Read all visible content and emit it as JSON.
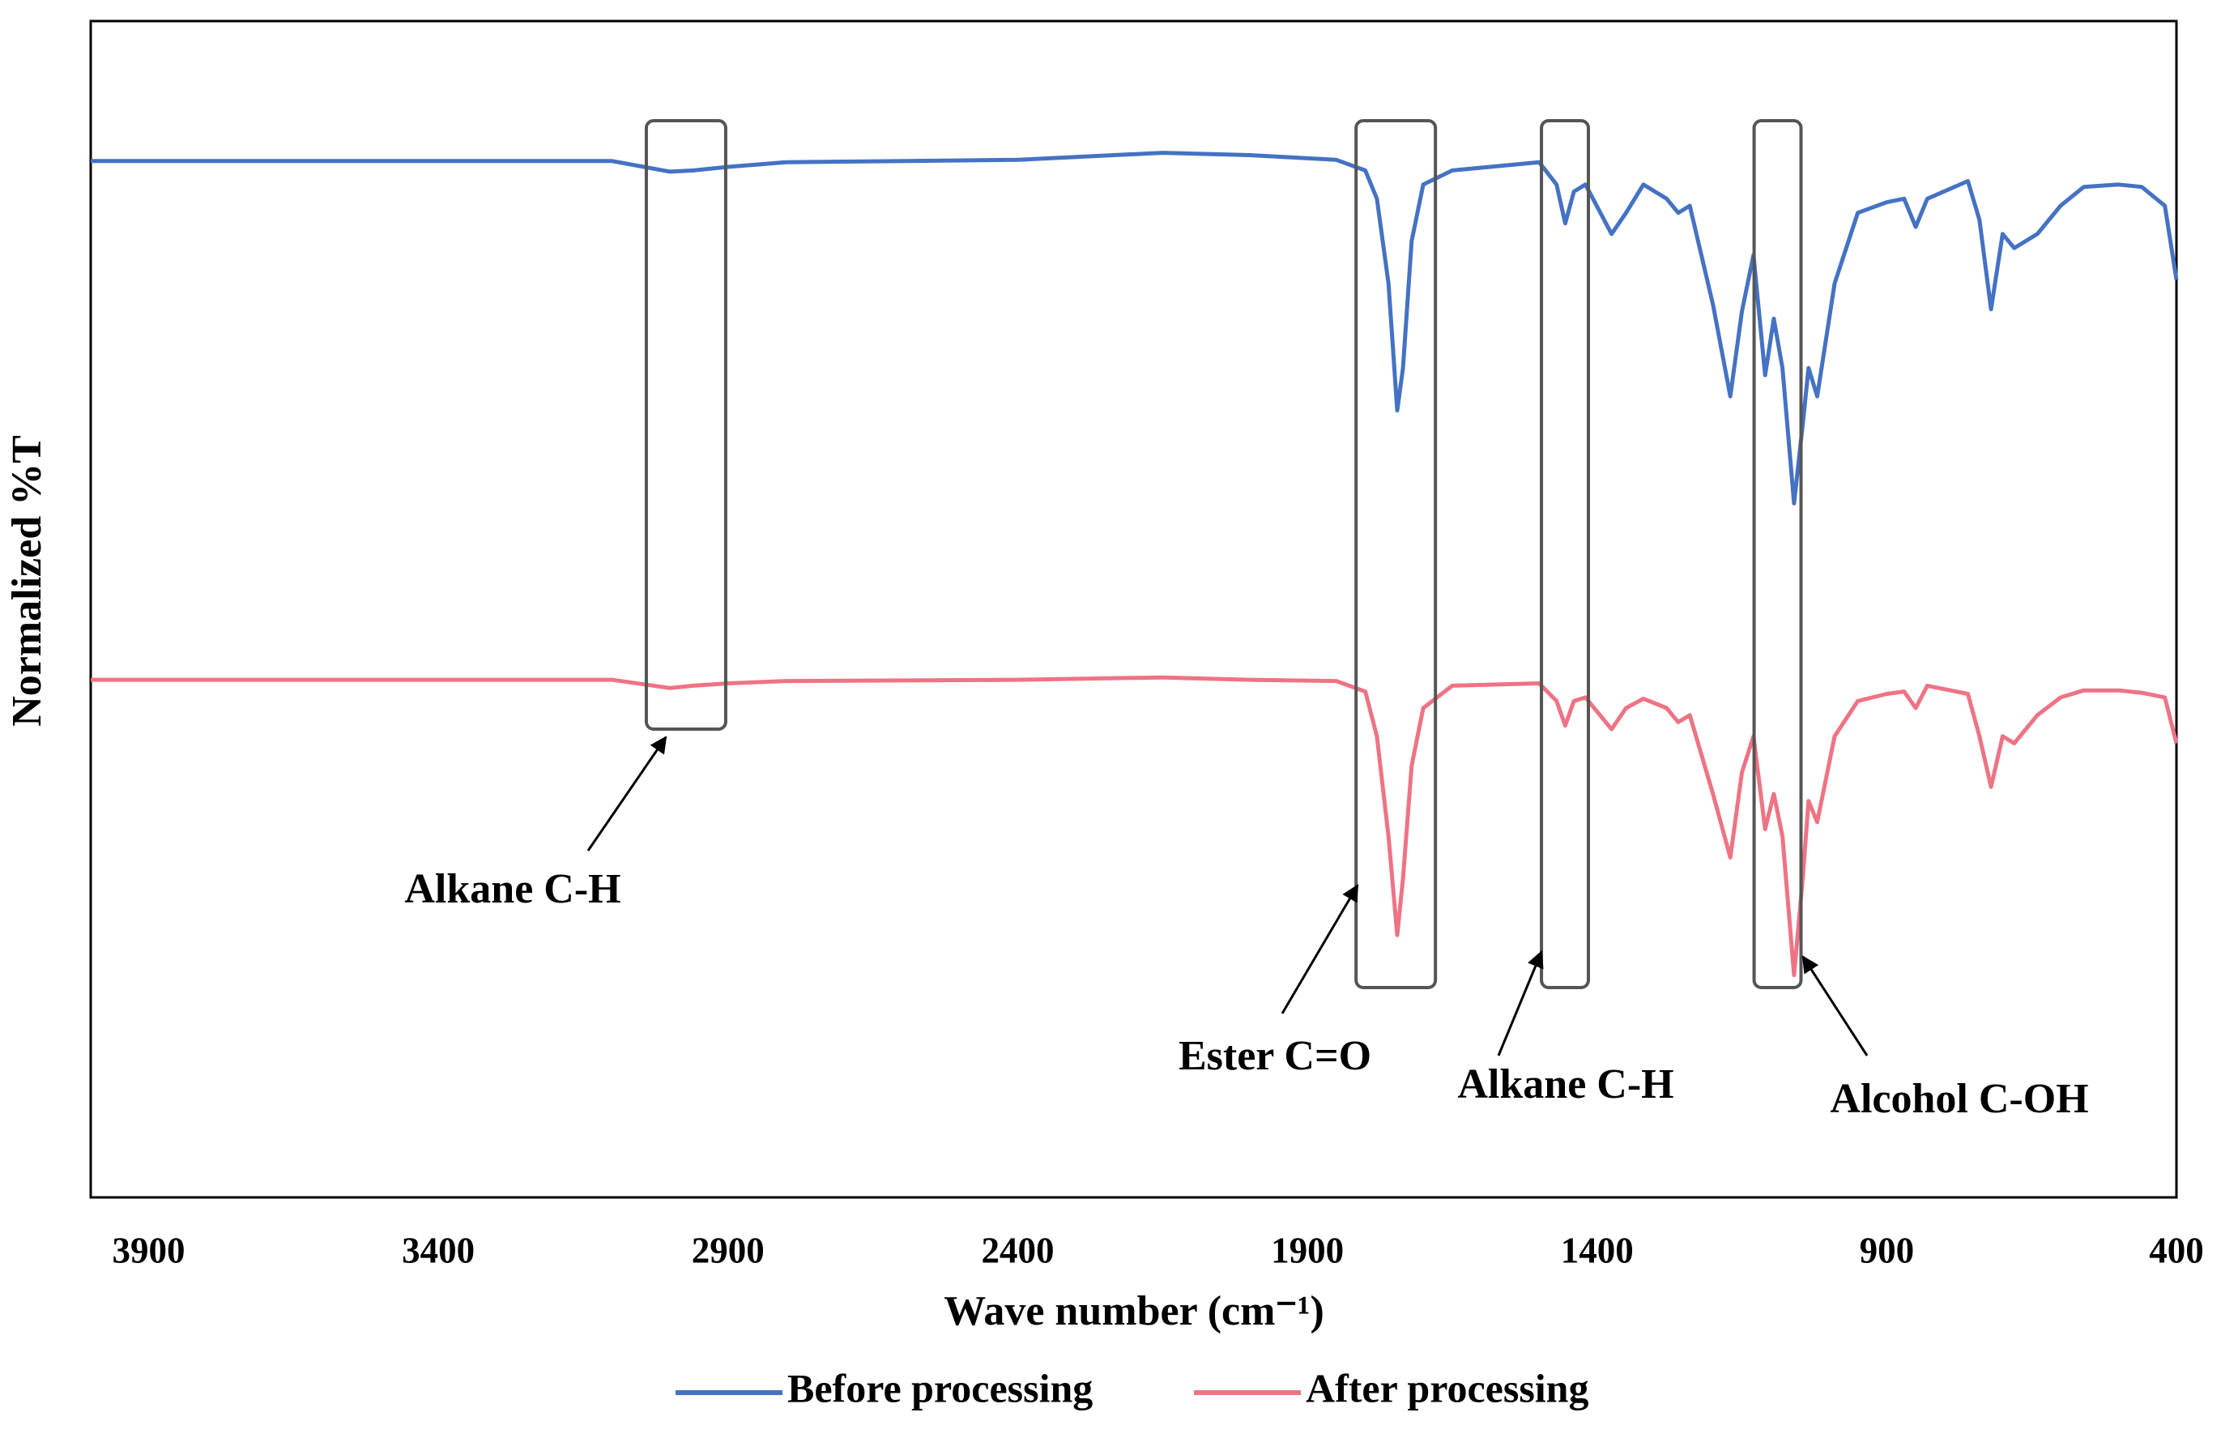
{
  "chart_data": {
    "type": "line",
    "x_label": "Wave number (cm⁻¹)",
    "y_label": "Normalized %T",
    "xlim": [
      4000,
      400
    ],
    "ylim": [
      0,
      100
    ],
    "xticks": [
      3900,
      3400,
      2900,
      2400,
      1900,
      1400,
      900,
      400
    ],
    "legend": "bottom",
    "x": [
      4000,
      3500,
      3100,
      3000,
      2960,
      2900,
      2800,
      2400,
      2150,
      2000,
      1850,
      1800,
      1780,
      1760,
      1745,
      1735,
      1720,
      1700,
      1650,
      1500,
      1470,
      1455,
      1440,
      1420,
      1375,
      1350,
      1320,
      1280,
      1260,
      1240,
      1200,
      1170,
      1150,
      1130,
      1110,
      1095,
      1080,
      1060,
      1045,
      1035,
      1020,
      990,
      950,
      900,
      870,
      850,
      830,
      760,
      740,
      720,
      700,
      680,
      640,
      600,
      560,
      500,
      460,
      420,
      400
    ],
    "series": [
      {
        "name": "Before processing",
        "color": "#4472c4",
        "values": [
          88.1,
          88.1,
          88.1,
          87.2,
          87.3,
          87.6,
          88.0,
          88.2,
          88.8,
          88.6,
          88.2,
          87.3,
          84.9,
          77.7,
          66.9,
          70.5,
          81.3,
          86.1,
          87.3,
          88.0,
          86.1,
          82.8,
          85.5,
          86.1,
          81.9,
          83.7,
          86.1,
          84.9,
          83.7,
          84.3,
          75.9,
          68.1,
          75.3,
          80.1,
          69.9,
          74.7,
          70.5,
          59.0,
          65.7,
          70.5,
          68.1,
          77.7,
          83.7,
          84.6,
          84.9,
          82.5,
          84.9,
          86.4,
          83.1,
          75.5,
          81.9,
          80.7,
          81.9,
          84.3,
          85.9,
          86.1,
          85.9,
          84.3,
          78.0
        ]
      },
      {
        "name": "After processing",
        "color": "#ee7384",
        "values": [
          44.0,
          44.0,
          44.0,
          43.3,
          43.5,
          43.7,
          43.9,
          44.0,
          44.2,
          44.0,
          43.9,
          43.0,
          39.2,
          30.7,
          22.3,
          27.1,
          36.7,
          41.6,
          43.5,
          43.7,
          42.2,
          40.1,
          42.2,
          42.5,
          39.8,
          41.6,
          42.4,
          41.6,
          40.4,
          41.0,
          34.3,
          28.9,
          36.1,
          39.2,
          31.3,
          34.3,
          30.7,
          18.9,
          27.1,
          33.7,
          31.9,
          39.2,
          42.2,
          42.8,
          43.0,
          41.6,
          43.5,
          42.8,
          39.2,
          34.9,
          39.2,
          38.6,
          41.0,
          42.5,
          43.1,
          43.1,
          42.9,
          42.5,
          38.6
        ]
      }
    ],
    "annotations": [
      {
        "text": "Alkane C-H",
        "x_range": [
          3041,
          2904
        ]
      },
      {
        "text": "Ester C=O",
        "x_range": [
          1816,
          1679
        ]
      },
      {
        "text": "Alkane C-H",
        "x_range": [
          1496,
          1415
        ]
      },
      {
        "text": "Alcohol C-OH",
        "x_range": [
          1129,
          1048
        ]
      }
    ]
  }
}
